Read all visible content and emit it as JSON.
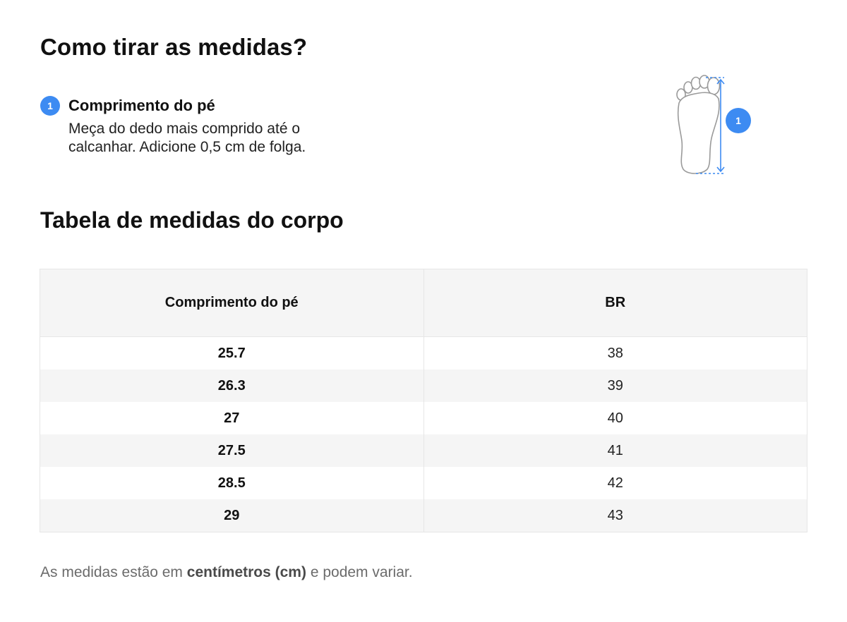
{
  "heading": "Como tirar as medidas?",
  "step": {
    "number": "1",
    "title": "Comprimento do pé",
    "description": "Meça do dedo mais comprido até o calcanhar. Adicione 0,5 cm de folga."
  },
  "figure": {
    "badge": "1",
    "icon": "foot-outline-icon",
    "accent_color": "#3d8bf2"
  },
  "table_heading": "Tabela de medidas do corpo",
  "table": {
    "columns": [
      "Comprimento do pé",
      "BR"
    ],
    "rows": [
      [
        "25.7",
        "38"
      ],
      [
        "26.3",
        "39"
      ],
      [
        "27",
        "40"
      ],
      [
        "27.5",
        "41"
      ],
      [
        "28.5",
        "42"
      ],
      [
        "29",
        "43"
      ]
    ]
  },
  "footnote": {
    "prefix": "As medidas estão em ",
    "bold": "centímetros (cm)",
    "suffix": " e podem variar."
  },
  "colors": {
    "accent": "#3d8bf2",
    "header_bg": "#f5f5f5",
    "border": "#e6e6e6",
    "muted_text": "#6b6b6b"
  }
}
